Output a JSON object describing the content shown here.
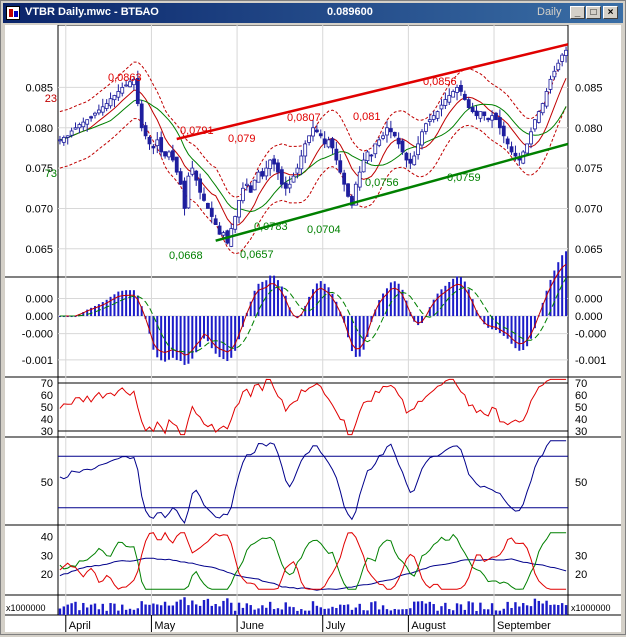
{
  "window": {
    "title": "VTBR Daily.mwc - ВТБАО",
    "price": "0.089600",
    "period": "Daily",
    "minimize_symbol": "_",
    "maximize_symbol": "□",
    "close_symbol": "×"
  },
  "colors": {
    "candle_up": "#ffffff",
    "candle_down": "#1e1e9e",
    "resistance": "#e00000",
    "support": "#008000",
    "ma": "#c00000",
    "histogram": "#1c1cc8",
    "grid": "#d8d8d8"
  },
  "chart_data": [
    {
      "type": "candlestick",
      "y_ticks": [
        "0.085",
        "0.080",
        "0.075",
        "0.070",
        "0.065"
      ],
      "ylim": [
        0.062,
        0.091
      ],
      "left_edge_labels": [
        "23",
        "73"
      ],
      "annotations": [
        {
          "text": "0,0863",
          "kind": "high"
        },
        {
          "text": "0,0791",
          "kind": "high"
        },
        {
          "text": "0,079",
          "kind": "high"
        },
        {
          "text": "0,0807",
          "kind": "high"
        },
        {
          "text": "0,081",
          "kind": "high"
        },
        {
          "text": "0,0856",
          "kind": "high"
        },
        {
          "text": "0,0668",
          "kind": "low"
        },
        {
          "text": "0,0657",
          "kind": "low"
        },
        {
          "text": "0,0783",
          "kind": "low"
        },
        {
          "text": "0,0704",
          "kind": "low"
        },
        {
          "text": "0,0756",
          "kind": "low"
        },
        {
          "text": "0,0759",
          "kind": "low"
        }
      ],
      "close": [
        0.0785,
        0.0788,
        0.079,
        0.0796,
        0.08,
        0.0804,
        0.0807,
        0.081,
        0.0812,
        0.0818,
        0.0822,
        0.0826,
        0.083,
        0.0836,
        0.084,
        0.0845,
        0.085,
        0.0853,
        0.0857,
        0.086,
        0.083,
        0.08,
        0.079,
        0.078,
        0.0775,
        0.0785,
        0.077,
        0.0765,
        0.077,
        0.076,
        0.0745,
        0.073,
        0.07,
        0.074,
        0.075,
        0.0735,
        0.072,
        0.071,
        0.07,
        0.069,
        0.068,
        0.0668,
        0.067,
        0.0657,
        0.0675,
        0.069,
        0.071,
        0.0725,
        0.073,
        0.072,
        0.0735,
        0.0745,
        0.074,
        0.075,
        0.076,
        0.0755,
        0.0745,
        0.073,
        0.0725,
        0.073,
        0.074,
        0.075,
        0.0765,
        0.078,
        0.079,
        0.08,
        0.0795,
        0.079,
        0.078,
        0.0785,
        0.0775,
        0.076,
        0.0745,
        0.073,
        0.0715,
        0.0704,
        0.073,
        0.0745,
        0.076,
        0.077,
        0.0765,
        0.078,
        0.0785,
        0.079,
        0.08,
        0.0795,
        0.079,
        0.078,
        0.077,
        0.076,
        0.0756,
        0.0765,
        0.078,
        0.0795,
        0.0805,
        0.081,
        0.0815,
        0.082,
        0.0828,
        0.0835,
        0.084,
        0.0845,
        0.085,
        0.0845,
        0.0835,
        0.0825,
        0.082,
        0.0815,
        0.082,
        0.0815,
        0.081,
        0.0815,
        0.081,
        0.08,
        0.079,
        0.078,
        0.077,
        0.0765,
        0.076,
        0.077,
        0.078,
        0.0795,
        0.081,
        0.082,
        0.083,
        0.0845,
        0.086,
        0.087,
        0.088,
        0.089,
        0.0896
      ]
    },
    {
      "type": "bar+line",
      "name": "MACD",
      "y_ticks": [
        "0.000",
        "0.000",
        "-0.000",
        "-0.001"
      ],
      "ylim": [
        -0.0013,
        0.0008
      ]
    },
    {
      "type": "line",
      "name": "RSI",
      "y_ticks": [
        "70",
        "60",
        "50",
        "40",
        "30"
      ],
      "ylim": [
        25,
        75
      ],
      "levels": [
        70,
        30
      ]
    },
    {
      "type": "line",
      "name": "Stochastic",
      "y_ticks": [
        "50"
      ],
      "ylim": [
        0,
        100
      ],
      "levels": [
        80,
        20
      ]
    },
    {
      "type": "line",
      "name": "DMI",
      "y_ticks_left": [
        "40",
        "30",
        "20"
      ],
      "y_ticks_right": [
        "30",
        "20"
      ],
      "ylim": [
        10,
        45
      ]
    },
    {
      "type": "bar",
      "name": "Volume",
      "multiplier_label": "x1000000"
    }
  ],
  "x_axis": {
    "months": [
      "April",
      "May",
      "June",
      "July",
      "August",
      "September"
    ]
  }
}
